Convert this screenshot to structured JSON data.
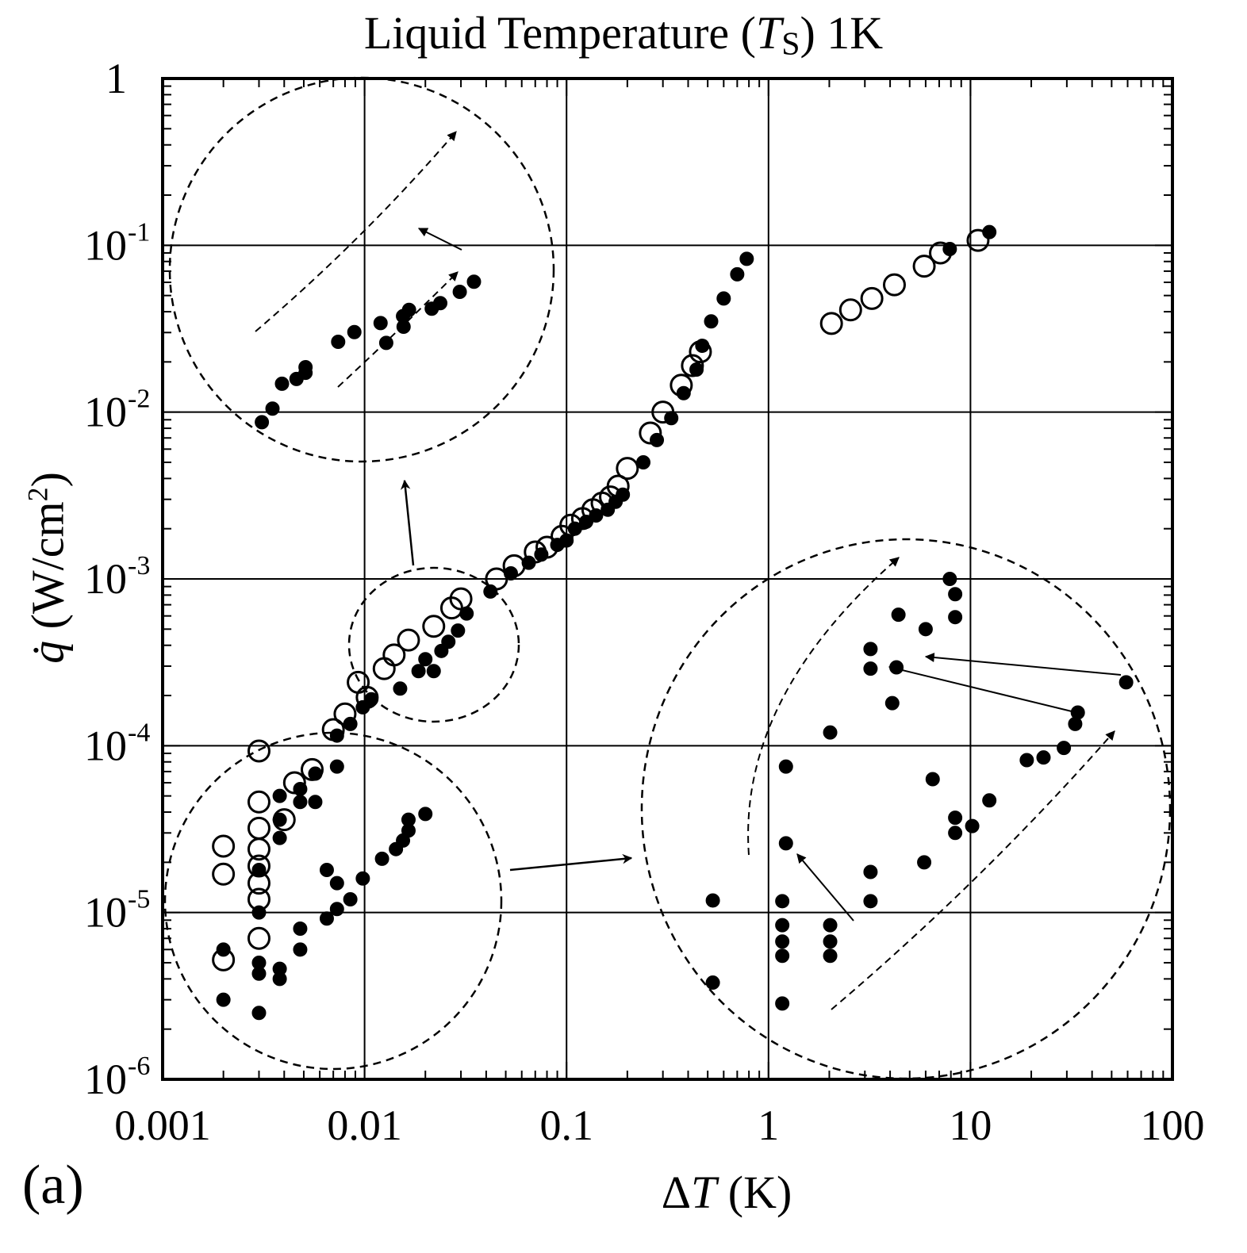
{
  "chart_data": {
    "type": "scatter",
    "title": {
      "pre": "Liquid Temperature (",
      "sym": "T",
      "sub": "S",
      "post": ") 1K"
    },
    "xlabel": {
      "pre": "Δ",
      "sym": "T",
      "post": " (K)"
    },
    "ylabel": {
      "sym": "q̇",
      "pre": " (W/cm",
      "sup": "2",
      "post": ")"
    },
    "panel_label": "(a)",
    "x_scale": "log",
    "y_scale": "log",
    "xlim": [
      0.001,
      100
    ],
    "ylim": [
      1e-06,
      1
    ],
    "grid": true,
    "x_tick_labels": [
      {
        "v": 0.001,
        "t": "0.001"
      },
      {
        "v": 0.01,
        "t": "0.01"
      },
      {
        "v": 0.1,
        "t": "0.1"
      },
      {
        "v": 1,
        "t": "1"
      },
      {
        "v": 10,
        "t": "10"
      },
      {
        "v": 100,
        "t": "100"
      }
    ],
    "y_tick_labels": [
      {
        "v": 1,
        "base": "1",
        "exp": ""
      },
      {
        "v": 0.1,
        "base": "10",
        "exp": "-1"
      },
      {
        "v": 0.01,
        "base": "10",
        "exp": "-2"
      },
      {
        "v": 0.001,
        "base": "10",
        "exp": "-3"
      },
      {
        "v": 0.0001,
        "base": "10",
        "exp": "-4"
      },
      {
        "v": 1e-05,
        "base": "10",
        "exp": "-5"
      },
      {
        "v": 1e-06,
        "base": "10",
        "exp": "-6"
      }
    ],
    "series": [
      {
        "marker": "open-circle",
        "points": [
          [
            0.002,
            2.5e-05
          ],
          [
            0.002,
            1.7e-05
          ],
          [
            0.002,
            5.2e-06
          ],
          [
            0.003,
            9.3e-05
          ],
          [
            0.003,
            4.6e-05
          ],
          [
            0.003,
            3.2e-05
          ],
          [
            0.003,
            2.4e-05
          ],
          [
            0.003,
            1.9e-05
          ],
          [
            0.003,
            1.5e-05
          ],
          [
            0.003,
            1.2e-05
          ],
          [
            0.003,
            7e-06
          ],
          [
            0.004,
            3.6e-05
          ],
          [
            0.0045,
            6e-05
          ],
          [
            0.0055,
            7.2e-05
          ],
          [
            0.007,
            0.000125
          ],
          [
            0.008,
            0.000155
          ],
          [
            0.0093,
            0.00024
          ],
          [
            0.0103,
            0.000195
          ],
          [
            0.0125,
            0.00029
          ],
          [
            0.014,
            0.00035
          ],
          [
            0.0165,
            0.00043
          ],
          [
            0.022,
            0.00052
          ],
          [
            0.027,
            0.00067
          ],
          [
            0.03,
            0.00076
          ],
          [
            0.045,
            0.001
          ],
          [
            0.055,
            0.0012
          ],
          [
            0.07,
            0.00145
          ],
          [
            0.08,
            0.00155
          ],
          [
            0.095,
            0.0018
          ],
          [
            0.105,
            0.0021
          ],
          [
            0.12,
            0.0023
          ],
          [
            0.135,
            0.0026
          ],
          [
            0.15,
            0.00285
          ],
          [
            0.165,
            0.0031
          ],
          [
            0.18,
            0.0036
          ],
          [
            0.2,
            0.0046
          ],
          [
            0.26,
            0.0075
          ],
          [
            0.3,
            0.01
          ],
          [
            0.37,
            0.0145
          ],
          [
            0.42,
            0.019
          ],
          [
            0.46,
            0.023
          ],
          [
            2.05,
            0.034
          ],
          [
            2.55,
            0.041
          ],
          [
            3.25,
            0.048
          ],
          [
            4.2,
            0.058
          ],
          [
            5.9,
            0.075
          ],
          [
            7.1,
            0.09
          ],
          [
            10.9,
            0.107
          ]
        ]
      },
      {
        "marker": "filled-circle",
        "points": [
          [
            0.002,
            3e-06
          ],
          [
            0.002,
            6e-06
          ],
          [
            0.003,
            2.5e-06
          ],
          [
            0.003,
            4.3e-06
          ],
          [
            0.003,
            5e-06
          ],
          [
            0.003,
            1e-05
          ],
          [
            0.003,
            1.8e-05
          ],
          [
            0.0038,
            4e-06
          ],
          [
            0.0038,
            4.6e-06
          ],
          [
            0.0038,
            5e-05
          ],
          [
            0.0038,
            2.8e-05
          ],
          [
            0.0038,
            3.6e-05
          ],
          [
            0.0048,
            6e-06
          ],
          [
            0.0048,
            8e-06
          ],
          [
            0.0048,
            4.6e-05
          ],
          [
            0.0048,
            5.5e-05
          ],
          [
            0.0057,
            4.6e-05
          ],
          [
            0.0057,
            6.8e-05
          ],
          [
            0.0065,
            9.2e-06
          ],
          [
            0.0065,
            1.8e-05
          ],
          [
            0.0073,
            1.05e-05
          ],
          [
            0.0073,
            1.5e-05
          ],
          [
            0.0073,
            7.5e-05
          ],
          [
            0.0073,
            0.000115
          ],
          [
            0.0085,
            1.2e-05
          ],
          [
            0.0085,
            0.000135
          ],
          [
            0.0098,
            1.6e-05
          ],
          [
            0.0098,
            0.00017
          ],
          [
            0.0108,
            0.00019
          ],
          [
            0.0122,
            2.1e-05
          ],
          [
            0.0143,
            2.4e-05
          ],
          [
            0.015,
            0.00022
          ],
          [
            0.0155,
            2.7e-05
          ],
          [
            0.0165,
            3.1e-05
          ],
          [
            0.0165,
            3.6e-05
          ],
          [
            0.0185,
            0.00028
          ],
          [
            0.02,
            3.9e-05
          ],
          [
            0.02,
            0.00033
          ],
          [
            0.022,
            0.00028
          ],
          [
            0.024,
            0.00037
          ],
          [
            0.026,
            0.00042
          ],
          [
            0.029,
            0.00049
          ],
          [
            0.032,
            0.00062
          ],
          [
            0.042,
            0.00084
          ],
          [
            0.053,
            0.00108
          ],
          [
            0.065,
            0.00125
          ],
          [
            0.075,
            0.0014
          ],
          [
            0.09,
            0.0016
          ],
          [
            0.1,
            0.0017
          ],
          [
            0.11,
            0.002
          ],
          [
            0.125,
            0.0022
          ],
          [
            0.14,
            0.0024
          ],
          [
            0.16,
            0.0026
          ],
          [
            0.175,
            0.0029
          ],
          [
            0.19,
            0.0032
          ],
          [
            0.24,
            0.005
          ],
          [
            0.28,
            0.0068
          ],
          [
            0.33,
            0.0092
          ],
          [
            0.38,
            0.013
          ],
          [
            0.44,
            0.018
          ],
          [
            0.47,
            0.025
          ],
          [
            0.52,
            0.035
          ],
          [
            0.6,
            0.048
          ],
          [
            0.7,
            0.067
          ],
          [
            0.78,
            0.083
          ],
          [
            7.9,
            0.095
          ],
          [
            12.4,
            0.12
          ]
        ]
      }
    ],
    "insets": [
      {
        "name": "low-heat-inset",
        "points": [
          [
            0.0031,
            0.0087
          ],
          [
            0.0035,
            0.0105
          ],
          [
            0.0039,
            0.0148
          ],
          [
            0.0046,
            0.0158
          ],
          [
            0.0051,
            0.0172
          ],
          [
            0.0051,
            0.0186
          ],
          [
            0.0074,
            0.0264
          ],
          [
            0.0089,
            0.0302
          ],
          [
            0.012,
            0.0342
          ],
          [
            0.0155,
            0.0376
          ],
          [
            0.0166,
            0.041
          ],
          [
            0.0215,
            0.0417
          ],
          [
            0.0237,
            0.045
          ],
          [
            0.0296,
            0.0526
          ],
          [
            0.0348,
            0.0605
          ],
          [
            0.0156,
            0.0325
          ],
          [
            0.0128,
            0.026
          ]
        ]
      },
      {
        "name": "mid-range-inset",
        "points": [
          [
            0.53,
            3.8e-06
          ],
          [
            0.53,
            1.18e-05
          ],
          [
            1.17,
            2.85e-06
          ],
          [
            1.17,
            5.5e-06
          ],
          [
            1.17,
            6.7e-06
          ],
          [
            1.17,
            8.4e-06
          ],
          [
            1.17,
            1.17e-05
          ],
          [
            1.22,
            2.6e-05
          ],
          [
            1.22,
            7.5e-05
          ],
          [
            2.02,
            5.5e-06
          ],
          [
            2.02,
            6.7e-06
          ],
          [
            2.02,
            8.4e-06
          ],
          [
            2.02,
            0.00012
          ],
          [
            3.2,
            1.17e-05
          ],
          [
            3.2,
            1.75e-05
          ],
          [
            3.2,
            0.00029
          ],
          [
            3.2,
            0.00038
          ],
          [
            4.1,
            0.00018
          ],
          [
            4.3,
            0.000295
          ],
          [
            4.4,
            0.00061
          ],
          [
            5.9,
            2e-05
          ],
          [
            6.0,
            0.0005
          ],
          [
            6.5,
            6.3e-05
          ],
          [
            7.9,
            0.001
          ],
          [
            8.4,
            0.00081
          ],
          [
            8.4,
            0.00059
          ],
          [
            8.4,
            3.7e-05
          ],
          [
            8.4,
            3e-05
          ],
          [
            10.2,
            3.3e-05
          ],
          [
            12.4,
            4.7e-05
          ],
          [
            19.0,
            8.2e-05
          ],
          [
            23.0,
            8.5e-05
          ],
          [
            29.0,
            9.7e-05
          ],
          [
            33.0,
            0.000135
          ],
          [
            34.0,
            0.000158
          ],
          [
            59.0,
            0.00024
          ]
        ]
      }
    ]
  }
}
